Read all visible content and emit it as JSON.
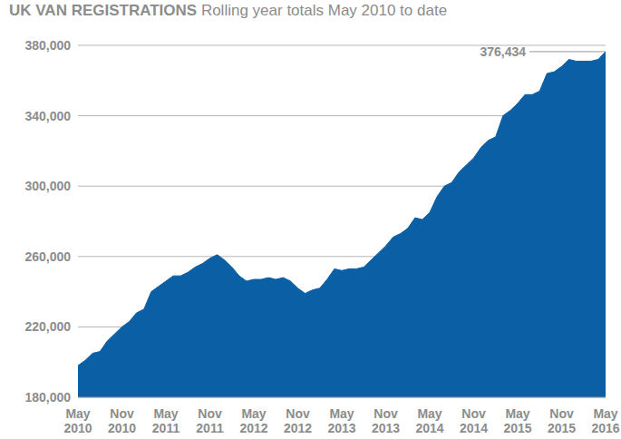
{
  "chart_data": {
    "type": "area",
    "title": "UK VAN REGISTRATIONS",
    "subtitle": "Rolling year totals May 2010 to date",
    "categories": [
      "May 2010",
      null,
      null,
      null,
      null,
      null,
      "Nov 2010",
      null,
      null,
      null,
      null,
      null,
      "May 2011",
      null,
      null,
      null,
      null,
      null,
      "Nov 2011",
      null,
      null,
      null,
      null,
      null,
      "May 2012",
      null,
      null,
      null,
      null,
      null,
      "Nov 2012",
      null,
      null,
      null,
      null,
      null,
      "May 2013",
      null,
      null,
      null,
      null,
      null,
      "Nov 2013",
      null,
      null,
      null,
      null,
      null,
      "May 2014",
      null,
      null,
      null,
      null,
      null,
      "Nov 2014",
      null,
      null,
      null,
      null,
      null,
      "May 2015",
      null,
      null,
      null,
      null,
      null,
      "Nov 2015",
      null,
      null,
      null,
      null,
      null,
      "May 2016"
    ],
    "values": [
      198000,
      201000,
      205000,
      206000,
      212000,
      216000,
      220000,
      223000,
      228000,
      230000,
      240000,
      243000,
      246000,
      249000,
      249000,
      251000,
      254000,
      256000,
      259000,
      261000,
      258000,
      254000,
      249000,
      246000,
      247000,
      247000,
      248000,
      247000,
      248000,
      246000,
      242000,
      239000,
      241000,
      242000,
      247000,
      253000,
      252000,
      253000,
      253000,
      254000,
      258000,
      262000,
      266000,
      271000,
      273000,
      276000,
      282000,
      281000,
      285000,
      294000,
      300000,
      302000,
      308000,
      312000,
      316000,
      322000,
      326000,
      328000,
      340000,
      343000,
      347000,
      352000,
      352000,
      354000,
      364000,
      365000,
      368000,
      372000,
      371000,
      371000,
      371000,
      372000,
      376434
    ],
    "color": "#0b5fa5",
    "ylim": [
      180000,
      380000
    ],
    "yticks": [
      {
        "value": 180000,
        "label": "180,000"
      },
      {
        "value": 220000,
        "label": "220,000"
      },
      {
        "value": 260000,
        "label": "260,000"
      },
      {
        "value": 300000,
        "label": "300,000"
      },
      {
        "value": 340000,
        "label": "340,000"
      },
      {
        "value": 380000,
        "label": "380,000"
      }
    ],
    "annotation": {
      "text": "376,434",
      "value": 376434
    },
    "grid": true
  }
}
